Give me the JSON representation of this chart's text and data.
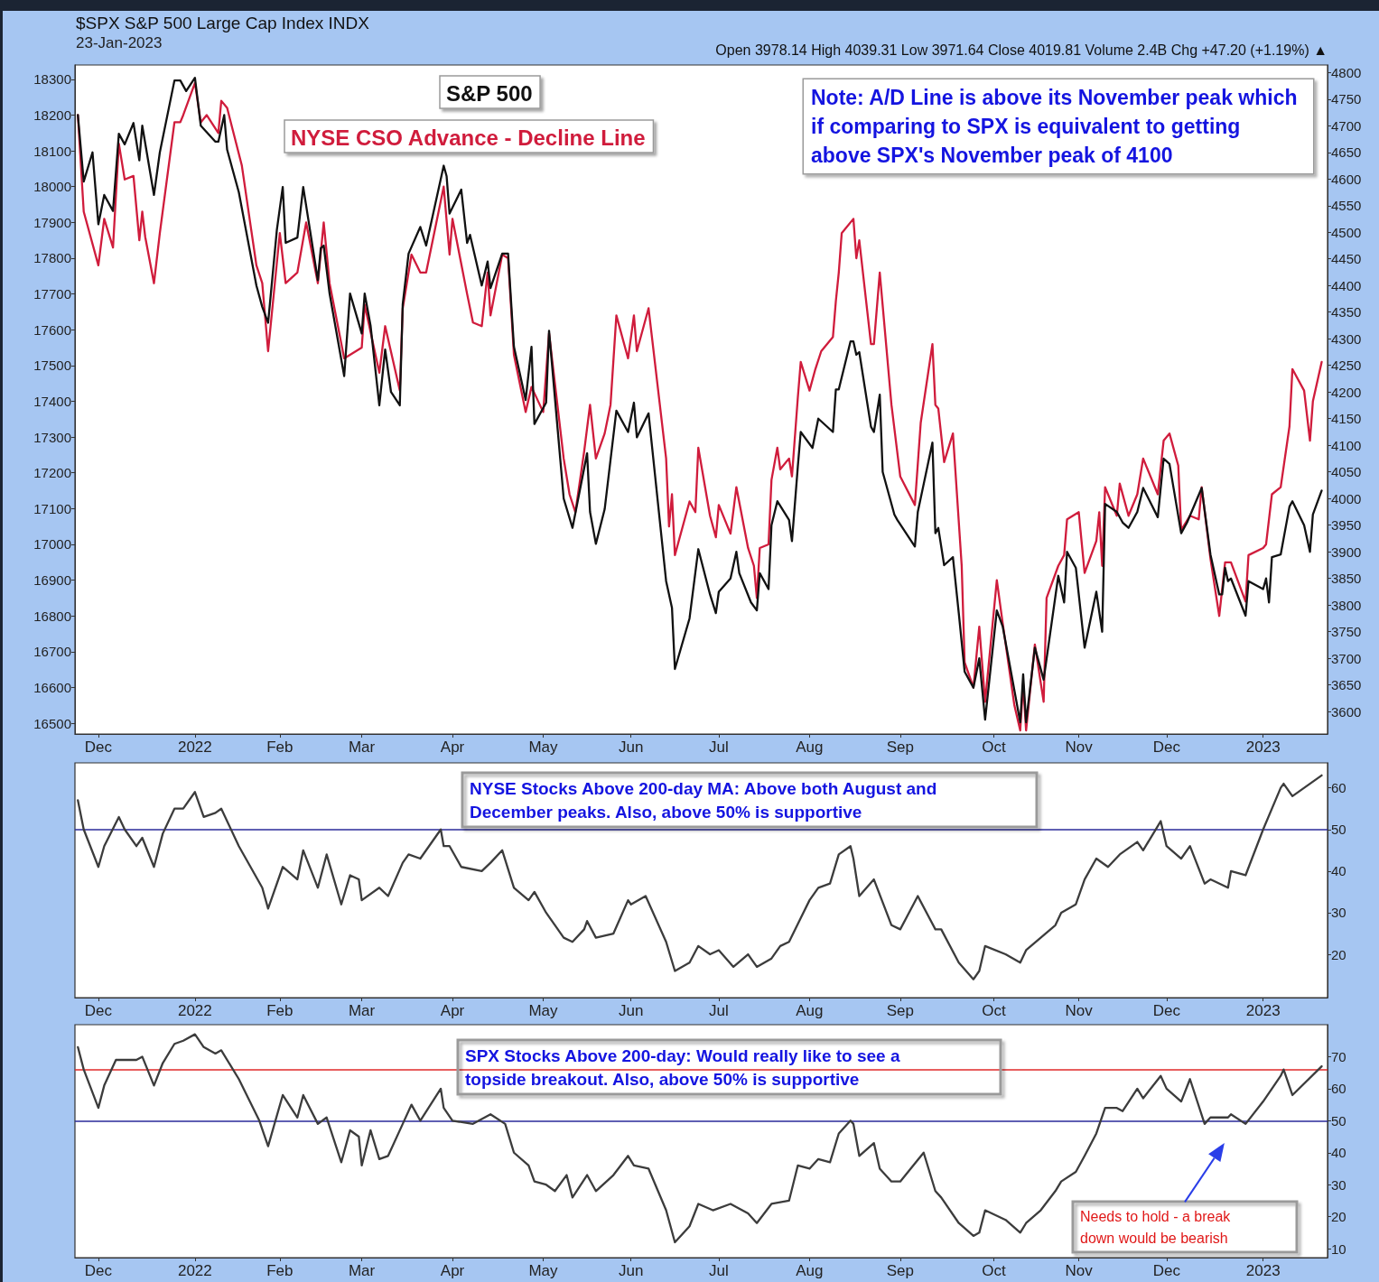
{
  "chart_data": [
    {
      "type": "line",
      "title": "$SPX S&P 500 Large Cap Index INDX",
      "subtitle": "23-Jan-2023",
      "annotations": [
        "Open 3978.14 High 4039.31 Low 3971.64 Close 4019.81 Volume 2.4B Chg +47.20 (+1.19%) ▲",
        "Note: A/D Line is above its November peak which if comparing to SPX is equivalent to getting above SPX's November peak of 4100"
      ],
      "marker": "none",
      "legend": "top",
      "xlim": [
        "2021-11-23",
        "2023-01-25"
      ],
      "xticks": [
        {
          "value": "2021-12-01",
          "label": "Dec"
        },
        {
          "value": "2022-01-03",
          "label": "2022"
        },
        {
          "value": "2022-02-01",
          "label": "Feb"
        },
        {
          "value": "2022-03-01",
          "label": "Mar"
        },
        {
          "value": "2022-04-01",
          "label": "Apr"
        },
        {
          "value": "2022-05-02",
          "label": "May"
        },
        {
          "value": "2022-06-01",
          "label": "Jun"
        },
        {
          "value": "2022-07-01",
          "label": "Jul"
        },
        {
          "value": "2022-08-01",
          "label": "Aug"
        },
        {
          "value": "2022-09-01",
          "label": "Sep"
        },
        {
          "value": "2022-10-03",
          "label": "Oct"
        },
        {
          "value": "2022-11-01",
          "label": "Nov"
        },
        {
          "value": "2022-12-01",
          "label": "Dec"
        },
        {
          "value": "2023-01-03",
          "label": "2023"
        }
      ],
      "ylim": [
        16470,
        18340
      ],
      "yticks": [
        16500,
        16600,
        16700,
        16800,
        16900,
        17000,
        17100,
        17200,
        17300,
        17400,
        17500,
        17600,
        17700,
        17800,
        17900,
        18000,
        18100,
        18200,
        18300
      ],
      "y2lim": [
        3558,
        4814
      ],
      "y2ticks": [
        3600,
        3650,
        3700,
        3750,
        3800,
        3850,
        3900,
        3950,
        4000,
        4050,
        4100,
        4150,
        4200,
        4250,
        4300,
        4350,
        4400,
        4450,
        4500,
        4550,
        4600,
        4650,
        4700,
        4750,
        4800
      ],
      "series": [
        {
          "name": "NYSE CSO Advance - Decline Line",
          "color": "#d01c3c",
          "x": [
            "2021-11-24",
            "2021-11-26",
            "2021-12-01",
            "2021-12-03",
            "2021-12-06",
            "2021-12-08",
            "2021-12-10",
            "2021-12-13",
            "2021-12-15",
            "2021-12-16",
            "2021-12-17",
            "2021-12-20",
            "2021-12-22",
            "2021-12-27",
            "2021-12-29",
            "2021-12-30",
            "2022-01-03",
            "2022-01-05",
            "2022-01-07",
            "2022-01-11",
            "2022-01-12",
            "2022-01-14",
            "2022-01-19",
            "2022-01-24",
            "2022-01-26",
            "2022-01-28",
            "2022-02-01",
            "2022-02-03",
            "2022-02-07",
            "2022-02-10",
            "2022-02-14",
            "2022-02-16",
            "2022-02-18",
            "2022-02-23",
            "2022-03-01",
            "2022-03-02",
            "2022-03-07",
            "2022-03-09",
            "2022-03-14",
            "2022-03-15",
            "2022-03-18",
            "2022-03-21",
            "2022-03-23",
            "2022-03-29",
            "2022-03-31",
            "2022-04-01",
            "2022-04-06",
            "2022-04-08",
            "2022-04-11",
            "2022-04-13",
            "2022-04-14",
            "2022-04-18",
            "2022-04-20",
            "2022-04-22",
            "2022-04-26",
            "2022-04-28",
            "2022-05-02",
            "2022-05-04",
            "2022-05-09",
            "2022-05-11",
            "2022-05-13",
            "2022-05-16",
            "2022-05-18",
            "2022-05-20",
            "2022-05-23",
            "2022-05-25",
            "2022-05-27",
            "2022-05-31",
            "2022-06-02",
            "2022-06-03",
            "2022-06-07",
            "2022-06-08",
            "2022-06-13",
            "2022-06-14",
            "2022-06-15",
            "2022-06-16",
            "2022-06-21",
            "2022-06-23",
            "2022-06-24",
            "2022-06-28",
            "2022-06-30",
            "2022-07-01",
            "2022-07-05",
            "2022-07-07",
            "2022-07-11",
            "2022-07-13",
            "2022-07-14",
            "2022-07-15",
            "2022-07-18",
            "2022-07-19",
            "2022-07-21",
            "2022-07-22",
            "2022-07-25",
            "2022-07-26",
            "2022-07-28",
            "2022-07-29",
            "2022-08-01",
            "2022-08-03",
            "2022-08-05",
            "2022-08-09",
            "2022-08-10",
            "2022-08-11",
            "2022-08-12",
            "2022-08-16",
            "2022-08-17",
            "2022-08-18",
            "2022-08-22",
            "2022-08-23",
            "2022-08-25",
            "2022-08-29",
            "2022-09-01",
            "2022-09-06",
            "2022-09-08",
            "2022-09-12",
            "2022-09-13",
            "2022-09-14",
            "2022-09-16",
            "2022-09-19",
            "2022-09-22",
            "2022-09-23",
            "2022-09-26",
            "2022-09-28",
            "2022-09-30",
            "2022-10-04",
            "2022-10-06",
            "2022-10-10",
            "2022-10-12",
            "2022-10-13",
            "2022-10-14",
            "2022-10-17",
            "2022-10-20",
            "2022-10-21",
            "2022-10-25",
            "2022-10-27",
            "2022-10-28",
            "2022-11-01",
            "2022-11-03",
            "2022-11-07",
            "2022-11-08",
            "2022-11-09",
            "2022-11-10",
            "2022-11-14",
            "2022-11-15",
            "2022-11-18",
            "2022-11-21",
            "2022-11-23",
            "2022-11-28",
            "2022-11-30",
            "2022-12-02",
            "2022-12-05",
            "2022-12-06",
            "2022-12-09",
            "2022-12-12",
            "2022-12-13",
            "2022-12-16",
            "2022-12-19",
            "2022-12-21",
            "2022-12-22",
            "2022-12-23",
            "2022-12-28",
            "2022-12-29",
            "2023-01-03",
            "2023-01-04",
            "2023-01-06",
            "2023-01-09",
            "2023-01-12",
            "2023-01-13",
            "2023-01-17",
            "2023-01-19",
            "2023-01-20",
            "2023-01-23"
          ],
          "values": [
            18200,
            17930,
            17780,
            17910,
            17830,
            18120,
            18020,
            18030,
            17850,
            17930,
            17860,
            17730,
            17870,
            18180,
            18180,
            18200,
            18290,
            18180,
            18200,
            18150,
            18240,
            18220,
            18060,
            17780,
            17730,
            17540,
            17870,
            17730,
            17760,
            17900,
            17730,
            17900,
            17730,
            17520,
            17550,
            17670,
            17480,
            17610,
            17430,
            17660,
            17810,
            17760,
            17760,
            18000,
            17810,
            17910,
            17700,
            17620,
            17610,
            17760,
            17640,
            17810,
            17800,
            17530,
            17370,
            17440,
            17370,
            17590,
            17240,
            17140,
            17090,
            17260,
            17390,
            17240,
            17310,
            17390,
            17640,
            17520,
            17640,
            17540,
            17660,
            17590,
            17240,
            17050,
            17140,
            16970,
            17120,
            17090,
            17270,
            17080,
            17020,
            17110,
            17030,
            17160,
            16990,
            16940,
            16850,
            16990,
            17000,
            17180,
            17270,
            17210,
            17240,
            17190,
            17410,
            17510,
            17430,
            17490,
            17540,
            17580,
            17680,
            17760,
            17870,
            17910,
            17800,
            17850,
            17560,
            17560,
            17760,
            17390,
            17190,
            17110,
            17340,
            17560,
            17390,
            17380,
            17230,
            17310,
            16940,
            16670,
            16600,
            16770,
            16560,
            16900,
            16780,
            16550,
            16480,
            16610,
            16480,
            16720,
            16560,
            16850,
            16940,
            16970,
            17070,
            17090,
            16920,
            17010,
            17090,
            16940,
            17160,
            17080,
            17170,
            17080,
            17140,
            17240,
            17140,
            17290,
            17310,
            17220,
            17040,
            17080,
            17070,
            17160,
            16960,
            16800,
            16950,
            16950,
            16950,
            16840,
            16970,
            16990,
            17000,
            17140,
            17160,
            17330,
            17490,
            17430,
            17290,
            17400,
            17510
          ]
        },
        {
          "name": "S&P 500",
          "color": "#111111",
          "axis": "y2",
          "x": [
            "2021-11-24",
            "2021-11-26",
            "2021-11-29",
            "2021-12-01",
            "2021-12-03",
            "2021-12-06",
            "2021-12-08",
            "2021-12-10",
            "2021-12-13",
            "2021-12-15",
            "2021-12-16",
            "2021-12-20",
            "2021-12-22",
            "2021-12-27",
            "2021-12-29",
            "2021-12-31",
            "2022-01-03",
            "2022-01-05",
            "2022-01-10",
            "2022-01-11",
            "2022-01-13",
            "2022-01-14",
            "2022-01-18",
            "2022-01-24",
            "2022-01-26",
            "2022-01-28",
            "2022-01-31",
            "2022-02-02",
            "2022-02-03",
            "2022-02-07",
            "2022-02-09",
            "2022-02-14",
            "2022-02-15",
            "2022-02-16",
            "2022-02-18",
            "2022-02-23",
            "2022-02-25",
            "2022-03-01",
            "2022-03-02",
            "2022-03-04",
            "2022-03-07",
            "2022-03-09",
            "2022-03-11",
            "2022-03-14",
            "2022-03-15",
            "2022-03-17",
            "2022-03-21",
            "2022-03-23",
            "2022-03-29",
            "2022-03-30",
            "2022-03-31",
            "2022-04-04",
            "2022-04-06",
            "2022-04-07",
            "2022-04-11",
            "2022-04-13",
            "2022-04-14",
            "2022-04-18",
            "2022-04-20",
            "2022-04-22",
            "2022-04-26",
            "2022-04-28",
            "2022-04-29",
            "2022-05-03",
            "2022-05-04",
            "2022-05-09",
            "2022-05-12",
            "2022-05-17",
            "2022-05-18",
            "2022-05-20",
            "2022-05-23",
            "2022-05-27",
            "2022-05-31",
            "2022-06-02",
            "2022-06-03",
            "2022-06-07",
            "2022-06-13",
            "2022-06-15",
            "2022-06-16",
            "2022-06-21",
            "2022-06-24",
            "2022-06-28",
            "2022-06-30",
            "2022-07-01",
            "2022-07-05",
            "2022-07-07",
            "2022-07-08",
            "2022-07-12",
            "2022-07-14",
            "2022-07-15",
            "2022-07-18",
            "2022-07-19",
            "2022-07-21",
            "2022-07-25",
            "2022-07-26",
            "2022-07-28",
            "2022-07-29",
            "2022-08-02",
            "2022-08-04",
            "2022-08-09",
            "2022-08-10",
            "2022-08-11",
            "2022-08-15",
            "2022-08-16",
            "2022-08-17",
            "2022-08-18",
            "2022-08-22",
            "2022-08-23",
            "2022-08-25",
            "2022-08-26",
            "2022-08-30",
            "2022-08-31",
            "2022-09-06",
            "2022-09-07",
            "2022-09-12",
            "2022-09-13",
            "2022-09-14",
            "2022-09-16",
            "2022-09-19",
            "2022-09-21",
            "2022-09-23",
            "2022-09-26",
            "2022-09-28",
            "2022-09-30",
            "2022-10-04",
            "2022-10-06",
            "2022-10-10",
            "2022-10-12",
            "2022-10-13",
            "2022-10-14",
            "2022-10-17",
            "2022-10-20",
            "2022-10-25",
            "2022-10-27",
            "2022-10-28",
            "2022-10-31",
            "2022-11-03",
            "2022-11-07",
            "2022-11-09",
            "2022-11-10",
            "2022-11-14",
            "2022-11-16",
            "2022-11-18",
            "2022-11-21",
            "2022-11-23",
            "2022-11-28",
            "2022-11-30",
            "2022-12-02",
            "2022-12-06",
            "2022-12-08",
            "2022-12-13",
            "2022-12-16",
            "2022-12-19",
            "2022-12-20",
            "2022-12-21",
            "2022-12-22",
            "2022-12-23",
            "2022-12-28",
            "2022-12-29",
            "2023-01-03",
            "2023-01-04",
            "2023-01-05",
            "2023-01-06",
            "2023-01-09",
            "2023-01-12",
            "2023-01-13",
            "2023-01-17",
            "2023-01-19",
            "2023-01-20",
            "2023-01-23"
          ],
          "values": [
            4720,
            4595,
            4650,
            4515,
            4570,
            4540,
            4685,
            4665,
            4705,
            4635,
            4700,
            4570,
            4650,
            4785,
            4785,
            4765,
            4790,
            4700,
            4670,
            4670,
            4720,
            4655,
            4575,
            4400,
            4360,
            4330,
            4505,
            4585,
            4480,
            4490,
            4585,
            4410,
            4470,
            4475,
            4385,
            4230,
            4385,
            4310,
            4385,
            4325,
            4175,
            4280,
            4200,
            4175,
            4365,
            4460,
            4510,
            4475,
            4625,
            4605,
            4535,
            4580,
            4480,
            4495,
            4400,
            4445,
            4395,
            4460,
            4460,
            4285,
            4185,
            4285,
            4140,
            4180,
            4315,
            4000,
            3945,
            4085,
            3975,
            3915,
            3980,
            4165,
            4125,
            4180,
            4115,
            4160,
            3845,
            3795,
            3680,
            3775,
            3905,
            3820,
            3785,
            3825,
            3850,
            3900,
            3860,
            3805,
            3790,
            3860,
            3830,
            3950,
            3995,
            3960,
            3920,
            4060,
            4125,
            4095,
            4150,
            4125,
            4205,
            4205,
            4295,
            4295,
            4270,
            4275,
            4135,
            4125,
            4195,
            4050,
            3970,
            3960,
            3910,
            3975,
            4105,
            3935,
            3945,
            3875,
            3890,
            3785,
            3675,
            3645,
            3700,
            3585,
            3790,
            3760,
            3640,
            3580,
            3670,
            3580,
            3720,
            3660,
            3855,
            3805,
            3900,
            3870,
            3720,
            3825,
            3750,
            3990,
            3975,
            3955,
            3945,
            3975,
            4020,
            3965,
            4075,
            4065,
            3935,
            3955,
            4020,
            3895,
            3820,
            3820,
            3870,
            3845,
            3850,
            3780,
            3845,
            3830,
            3850,
            3805,
            3890,
            3895,
            3985,
            3995,
            3950,
            3900,
            3970,
            4015
          ]
        }
      ]
    },
    {
      "type": "line",
      "annotations": [
        "NYSE Stocks Above 200-day MA: Above both August and December peaks. Also, above 50% is supportive"
      ],
      "marker": "none",
      "xlim": [
        "2021-11-23",
        "2023-01-25"
      ],
      "xticks": [
        {
          "value": "2021-12-01",
          "label": "Dec"
        },
        {
          "value": "2022-01-03",
          "label": "2022"
        },
        {
          "value": "2022-02-01",
          "label": "Feb"
        },
        {
          "value": "2022-03-01",
          "label": "Mar"
        },
        {
          "value": "2022-04-01",
          "label": "Apr"
        },
        {
          "value": "2022-05-02",
          "label": "May"
        },
        {
          "value": "2022-06-01",
          "label": "Jun"
        },
        {
          "value": "2022-07-01",
          "label": "Jul"
        },
        {
          "value": "2022-08-01",
          "label": "Aug"
        },
        {
          "value": "2022-09-01",
          "label": "Sep"
        },
        {
          "value": "2022-10-03",
          "label": "Oct"
        },
        {
          "value": "2022-11-01",
          "label": "Nov"
        },
        {
          "value": "2022-12-01",
          "label": "Dec"
        },
        {
          "value": "2023-01-03",
          "label": "2023"
        }
      ],
      "ylim": [
        9.6,
        66
      ],
      "yticks": [
        20,
        30,
        40,
        50,
        60
      ],
      "ref_lines": [
        {
          "axis": "y",
          "value": 50,
          "color": "#2a2a9a"
        }
      ],
      "x": [
        "2021-11-24",
        "2021-11-26",
        "2021-12-01",
        "2021-12-03",
        "2021-12-08",
        "2021-12-10",
        "2021-12-14",
        "2021-12-16",
        "2021-12-20",
        "2021-12-23",
        "2021-12-27",
        "2021-12-30",
        "2022-01-03",
        "2022-01-06",
        "2022-01-10",
        "2022-01-12",
        "2022-01-18",
        "2022-01-26",
        "2022-01-28",
        "2022-02-02",
        "2022-02-07",
        "2022-02-09",
        "2022-02-14",
        "2022-02-17",
        "2022-02-22",
        "2022-02-25",
        "2022-02-28",
        "2022-03-01",
        "2022-03-07",
        "2022-03-10",
        "2022-03-15",
        "2022-03-17",
        "2022-03-21",
        "2022-03-28",
        "2022-03-29",
        "2022-03-31",
        "2022-04-04",
        "2022-04-11",
        "2022-04-14",
        "2022-04-18",
        "2022-04-22",
        "2022-04-27",
        "2022-04-29",
        "2022-05-03",
        "2022-05-05",
        "2022-05-09",
        "2022-05-12",
        "2022-05-16",
        "2022-05-17",
        "2022-05-20",
        "2022-05-26",
        "2022-05-31",
        "2022-06-01",
        "2022-06-06",
        "2022-06-13",
        "2022-06-16",
        "2022-06-21",
        "2022-06-24",
        "2022-06-28",
        "2022-07-01",
        "2022-07-06",
        "2022-07-11",
        "2022-07-14",
        "2022-07-19",
        "2022-07-22",
        "2022-07-25",
        "2022-08-01",
        "2022-08-04",
        "2022-08-08",
        "2022-08-11",
        "2022-08-15",
        "2022-08-16",
        "2022-08-18",
        "2022-08-23",
        "2022-08-29",
        "2022-09-01",
        "2022-09-07",
        "2022-09-13",
        "2022-09-15",
        "2022-09-21",
        "2022-09-26",
        "2022-09-28",
        "2022-09-30",
        "2022-10-07",
        "2022-10-12",
        "2022-10-14",
        "2022-10-19",
        "2022-10-24",
        "2022-10-26",
        "2022-10-31",
        "2022-11-03",
        "2022-11-07",
        "2022-11-11",
        "2022-11-15",
        "2022-11-21",
        "2022-11-23",
        "2022-11-29",
        "2022-12-01",
        "2022-12-06",
        "2022-12-09",
        "2022-12-14",
        "2022-12-16",
        "2022-12-22",
        "2022-12-23",
        "2022-12-28",
        "2023-01-03",
        "2023-01-09",
        "2023-01-10",
        "2023-01-13",
        "2023-01-23"
      ],
      "series": [
        {
          "color": "#3c3c3c",
          "values": [
            57,
            50,
            41,
            46,
            53,
            50,
            46,
            48,
            41,
            49,
            55,
            55,
            59,
            53,
            54,
            55,
            46,
            36,
            31,
            41,
            38,
            45,
            36,
            44,
            32,
            39,
            38,
            33,
            36,
            34,
            42,
            44,
            43,
            50,
            46,
            46,
            41,
            40,
            42,
            45,
            36,
            33,
            35,
            30,
            28,
            24,
            23,
            26,
            28,
            24,
            25,
            33,
            32,
            34,
            23,
            16,
            18,
            22,
            20,
            21,
            17,
            20,
            17,
            19,
            22,
            23,
            33,
            36,
            37,
            44,
            46,
            43,
            34,
            38,
            27,
            26,
            34,
            26,
            26,
            18,
            14,
            16,
            22,
            20,
            18,
            21,
            24,
            27,
            30,
            32,
            38,
            43,
            41,
            44,
            47,
            45,
            52,
            46,
            43,
            46,
            37,
            38,
            36,
            40,
            39,
            50,
            60,
            61,
            58,
            63
          ]
        }
      ]
    },
    {
      "type": "line",
      "annotations": [
        "SPX Stocks Above 200-day: Would really like to see a topside breakout. Also, above 50% is supportive",
        "Needs to hold - a break down would be bearish"
      ],
      "marker": "none",
      "xlim": [
        "2021-11-23",
        "2023-01-25"
      ],
      "xticks": [
        {
          "value": "2021-12-01",
          "label": "Dec"
        },
        {
          "value": "2022-01-03",
          "label": "2022"
        },
        {
          "value": "2022-02-01",
          "label": "Feb"
        },
        {
          "value": "2022-03-01",
          "label": "Mar"
        },
        {
          "value": "2022-04-01",
          "label": "Apr"
        },
        {
          "value": "2022-05-02",
          "label": "May"
        },
        {
          "value": "2022-06-01",
          "label": "Jun"
        },
        {
          "value": "2022-07-01",
          "label": "Jul"
        },
        {
          "value": "2022-08-01",
          "label": "Aug"
        },
        {
          "value": "2022-09-01",
          "label": "Sep"
        },
        {
          "value": "2022-10-03",
          "label": "Oct"
        },
        {
          "value": "2022-11-01",
          "label": "Nov"
        },
        {
          "value": "2022-12-01",
          "label": "Dec"
        },
        {
          "value": "2023-01-03",
          "label": "2023"
        }
      ],
      "ylim": [
        7.2,
        80
      ],
      "yticks": [
        10,
        20,
        30,
        40,
        50,
        60,
        70
      ],
      "ref_lines": [
        {
          "axis": "y",
          "value": 66,
          "color": "#e02828"
        },
        {
          "axis": "y",
          "value": 50,
          "color": "#2a2a9a"
        }
      ],
      "x": [
        "2021-11-24",
        "2021-11-26",
        "2021-12-01",
        "2021-12-03",
        "2021-12-07",
        "2021-12-10",
        "2021-12-14",
        "2021-12-16",
        "2021-12-20",
        "2021-12-23",
        "2021-12-27",
        "2021-12-30",
        "2022-01-03",
        "2022-01-06",
        "2022-01-10",
        "2022-01-12",
        "2022-01-18",
        "2022-01-25",
        "2022-01-28",
        "2022-02-02",
        "2022-02-07",
        "2022-02-09",
        "2022-02-14",
        "2022-02-17",
        "2022-02-22",
        "2022-02-25",
        "2022-02-28",
        "2022-03-01",
        "2022-03-04",
        "2022-03-07",
        "2022-03-10",
        "2022-03-15",
        "2022-03-18",
        "2022-03-21",
        "2022-03-28",
        "2022-03-29",
        "2022-04-01",
        "2022-04-08",
        "2022-04-14",
        "2022-04-19",
        "2022-04-22",
        "2022-04-27",
        "2022-04-29",
        "2022-05-03",
        "2022-05-06",
        "2022-05-10",
        "2022-05-12",
        "2022-05-17",
        "2022-05-20",
        "2022-05-26",
        "2022-05-31",
        "2022-06-02",
        "2022-06-07",
        "2022-06-13",
        "2022-06-16",
        "2022-06-21",
        "2022-06-24",
        "2022-06-29",
        "2022-07-05",
        "2022-07-11",
        "2022-07-14",
        "2022-07-19",
        "2022-07-25",
        "2022-07-28",
        "2022-08-01",
        "2022-08-04",
        "2022-08-08",
        "2022-08-11",
        "2022-08-15",
        "2022-08-16",
        "2022-08-18",
        "2022-08-23",
        "2022-08-25",
        "2022-08-29",
        "2022-09-01",
        "2022-09-09",
        "2022-09-13",
        "2022-09-15",
        "2022-09-21",
        "2022-09-26",
        "2022-09-28",
        "2022-09-30",
        "2022-10-07",
        "2022-10-12",
        "2022-10-14",
        "2022-10-19",
        "2022-10-24",
        "2022-10-26",
        "2022-10-31",
        "2022-11-03",
        "2022-11-07",
        "2022-11-10",
        "2022-11-14",
        "2022-11-16",
        "2022-11-21",
        "2022-11-23",
        "2022-11-29",
        "2022-12-01",
        "2022-12-06",
        "2022-12-09",
        "2022-12-14",
        "2022-12-16",
        "2022-12-22",
        "2022-12-23",
        "2022-12-28",
        "2023-01-03",
        "2023-01-09",
        "2023-01-10",
        "2023-01-13",
        "2023-01-23"
      ],
      "series": [
        {
          "color": "#3c3c3c",
          "values": [
            73,
            66,
            54,
            61,
            69,
            69,
            69,
            70,
            61,
            68,
            74,
            75,
            77,
            73,
            71,
            72,
            63,
            50,
            42,
            58,
            51,
            58,
            49,
            51,
            37,
            47,
            45,
            36,
            47,
            38,
            39,
            49,
            55,
            50,
            60,
            54,
            50,
            49,
            52,
            49,
            40,
            36,
            31,
            30,
            28,
            33,
            26,
            33,
            28,
            33,
            39,
            36,
            35,
            22,
            12,
            17,
            24,
            22,
            24,
            21,
            18,
            24,
            25,
            36,
            35,
            38,
            37,
            46,
            50,
            49,
            39,
            43,
            35,
            31,
            31,
            40,
            28,
            26,
            18,
            14,
            15,
            22,
            19,
            15,
            18,
            22,
            28,
            31,
            34,
            39,
            46,
            54,
            54,
            53,
            60,
            57,
            64,
            60,
            56,
            63,
            49,
            51,
            51,
            52,
            49,
            56,
            64,
            66,
            58,
            67
          ]
        }
      ]
    }
  ]
}
